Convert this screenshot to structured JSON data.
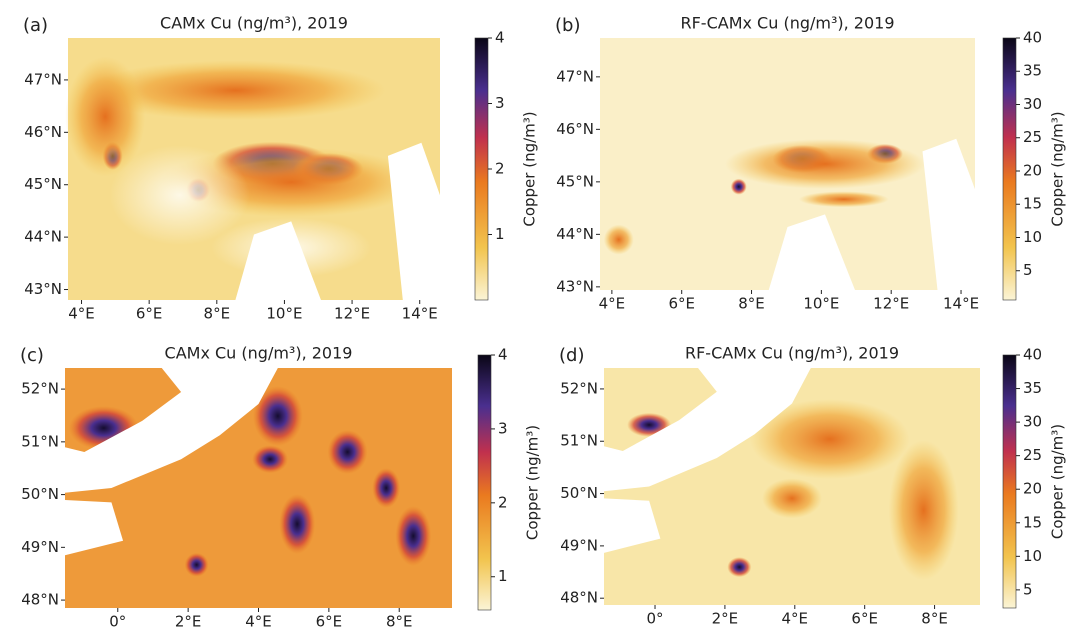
{
  "chart_data": [
    {
      "type": "map",
      "panel_label": "(a)",
      "title": "CAMx Cu (ng/m³), 2019",
      "xlim": [
        3.6,
        14.6
      ],
      "xticks": [
        {
          "value": 4,
          "label": "4°E"
        },
        {
          "value": 6,
          "label": "6°E"
        },
        {
          "value": 8,
          "label": "8°E"
        },
        {
          "value": 10,
          "label": "10°E"
        },
        {
          "value": 12,
          "label": "12°E"
        },
        {
          "value": 14,
          "label": "14°E"
        }
      ],
      "ylim": [
        42.8,
        47.8
      ],
      "yticks": [
        {
          "value": 43,
          "label": "43°N"
        },
        {
          "value": 44,
          "label": "44°N"
        },
        {
          "value": 45,
          "label": "45°N"
        },
        {
          "value": 46,
          "label": "46°N"
        },
        {
          "value": 47,
          "label": "47°N"
        }
      ],
      "colorbar_label": "Copper (ng/m³)",
      "clim": [
        0,
        4
      ],
      "cticks": [
        1,
        2,
        3,
        4
      ]
    },
    {
      "type": "map",
      "panel_label": "(b)",
      "title": "RF-CAMx Cu (ng/m³), 2019",
      "xlim": [
        3.66,
        14.4
      ],
      "xticks": [
        {
          "value": 4,
          "label": "4°E"
        },
        {
          "value": 6,
          "label": "6°E"
        },
        {
          "value": 8,
          "label": "8°E"
        },
        {
          "value": 10,
          "label": "10°E"
        },
        {
          "value": 12,
          "label": "12°E"
        },
        {
          "value": 14,
          "label": "14°E"
        }
      ],
      "ylim": [
        42.94,
        47.74
      ],
      "yticks": [
        {
          "value": 43,
          "label": "43°N"
        },
        {
          "value": 44,
          "label": "44°N"
        },
        {
          "value": 45,
          "label": "45°N"
        },
        {
          "value": 46,
          "label": "46°N"
        },
        {
          "value": 47,
          "label": "47°N"
        }
      ],
      "colorbar_label": "Copper (ng/m³)",
      "clim": [
        0.6,
        40
      ],
      "cticks": [
        5,
        10,
        15,
        20,
        25,
        30,
        35,
        40
      ]
    },
    {
      "type": "map",
      "panel_label": "(c)",
      "title": "CAMx Cu (ng/m³), 2019",
      "xlim": [
        -1.5,
        9.5
      ],
      "xticks": [
        {
          "value": 0,
          "label": "0°"
        },
        {
          "value": 2,
          "label": "2°E"
        },
        {
          "value": 4,
          "label": "4°E"
        },
        {
          "value": 6,
          "label": "6°E"
        },
        {
          "value": 8,
          "label": "8°E"
        }
      ],
      "ylim": [
        47.85,
        52.4
      ],
      "yticks": [
        {
          "value": 48,
          "label": "48°N"
        },
        {
          "value": 49,
          "label": "49°N"
        },
        {
          "value": 50,
          "label": "50°N"
        },
        {
          "value": 51,
          "label": "51°N"
        },
        {
          "value": 52,
          "label": "52°N"
        }
      ],
      "colorbar_label": "Copper (ng/m³)",
      "clim": [
        0.55,
        4
      ],
      "cticks": [
        1,
        2,
        3,
        4
      ]
    },
    {
      "type": "map",
      "panel_label": "(d)",
      "title": "RF-CAMx Cu (ng/m³), 2019",
      "xlim": [
        -1.46,
        9.3
      ],
      "xticks": [
        {
          "value": 0,
          "label": "0°"
        },
        {
          "value": 2,
          "label": "2°E"
        },
        {
          "value": 4,
          "label": "4°E"
        },
        {
          "value": 6,
          "label": "6°E"
        },
        {
          "value": 8,
          "label": "8°E"
        }
      ],
      "ylim": [
        47.87,
        52.4
      ],
      "yticks": [
        {
          "value": 48,
          "label": "48°N"
        },
        {
          "value": 49,
          "label": "49°N"
        },
        {
          "value": 50,
          "label": "50°N"
        },
        {
          "value": 51,
          "label": "51°N"
        },
        {
          "value": 52,
          "label": "52°N"
        }
      ],
      "colorbar_label": "Copper (ng/m³)",
      "clim": [
        2.3,
        40
      ],
      "cticks": [
        5,
        10,
        15,
        20,
        25,
        30,
        35,
        40
      ]
    }
  ]
}
